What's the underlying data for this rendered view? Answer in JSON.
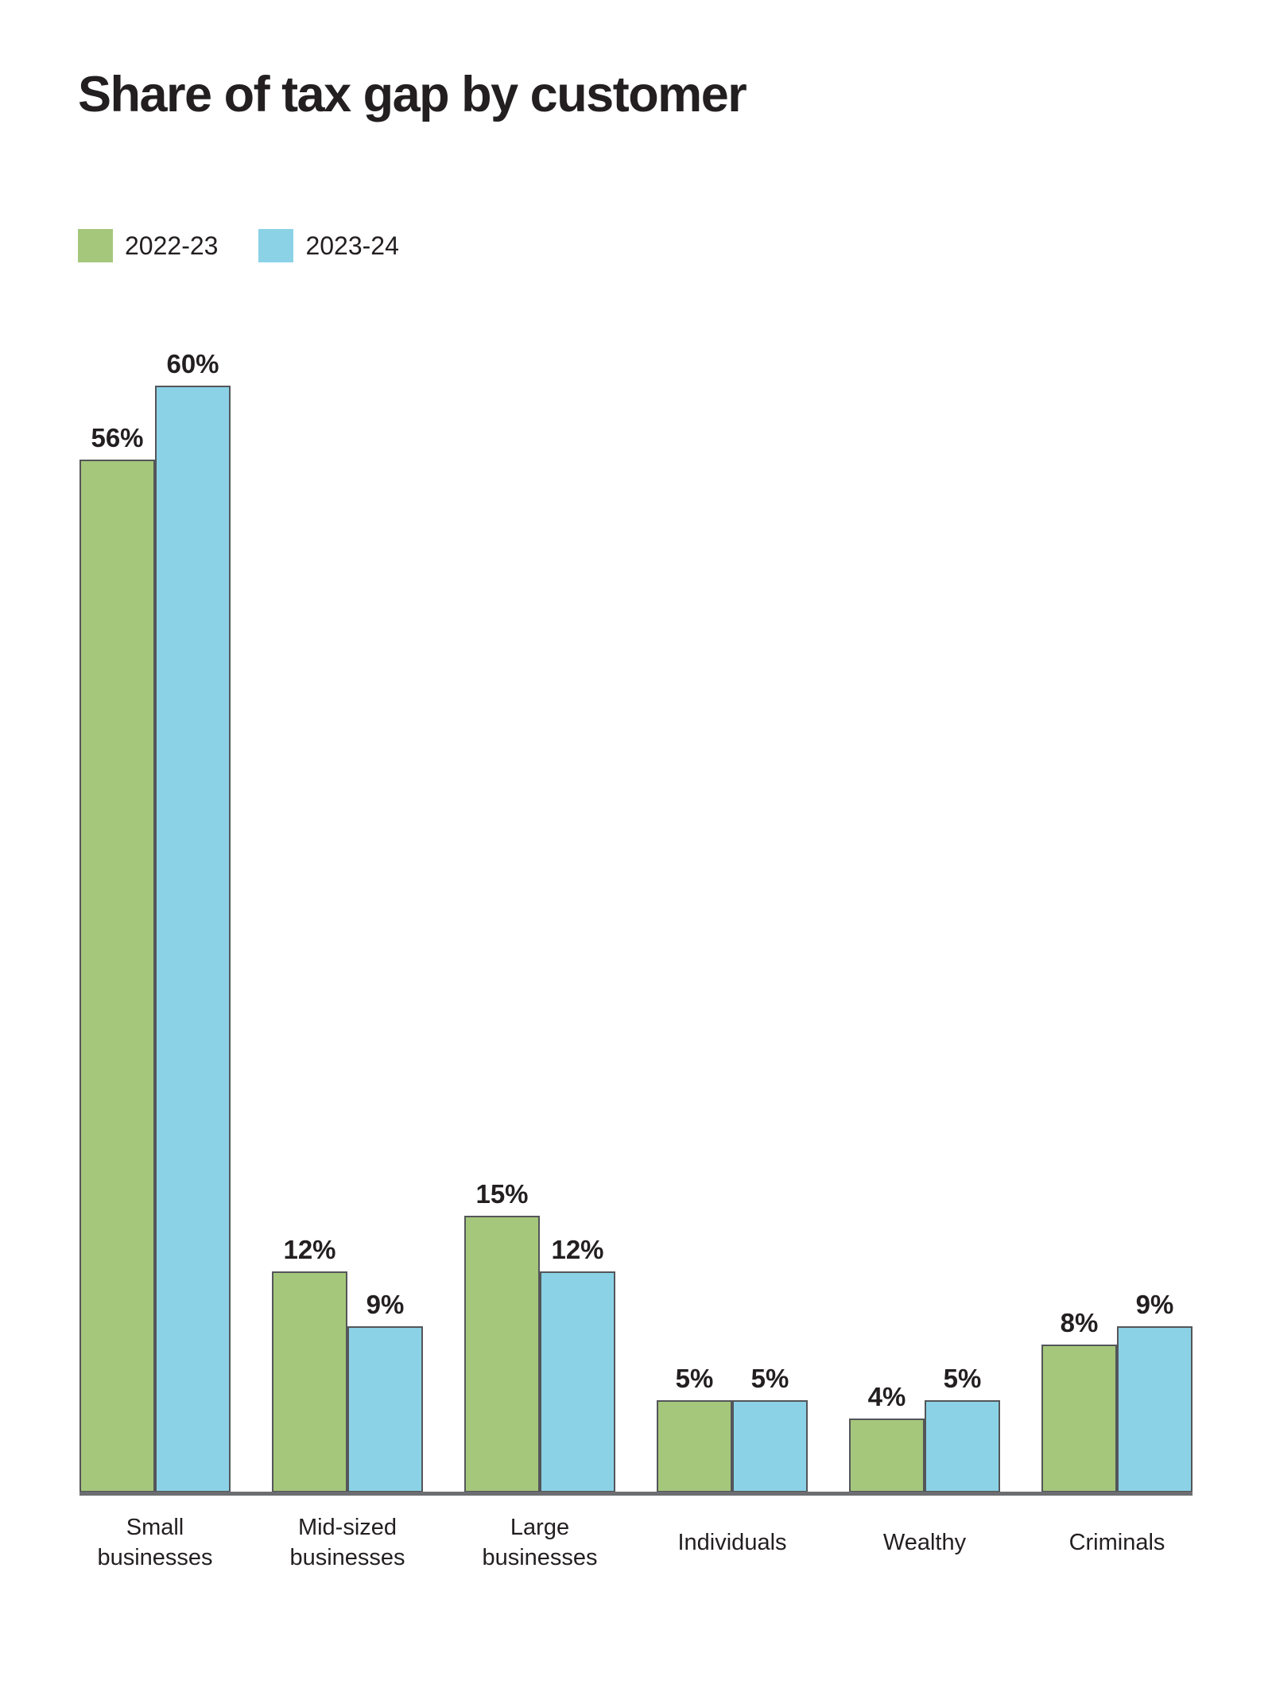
{
  "title": "Share of tax gap by customer",
  "chart_data": {
    "type": "bar",
    "title": "Share of tax gap by customer",
    "categories": [
      "Small\nbusinesses",
      "Mid-sized\nbusinesses",
      "Large\nbusinesses",
      "Individuals",
      "Wealthy",
      "Criminals"
    ],
    "series": [
      {
        "name": "2022-23",
        "color": "#a5c77b",
        "values": [
          56,
          12,
          15,
          5,
          4,
          8
        ]
      },
      {
        "name": "2023-24",
        "color": "#8bd2e6",
        "values": [
          60,
          9,
          12,
          5,
          5,
          9
        ]
      }
    ],
    "value_suffix": "%",
    "data_labels": true,
    "xlabel": "",
    "ylabel": "",
    "ylim": [
      0,
      62
    ],
    "grid": false,
    "legend_position": "top-left"
  },
  "style": {
    "background": "#ffffff",
    "text_color": "#231f20",
    "bar_border_color": "#54565a",
    "axis_line_color": "#6d6e71"
  }
}
